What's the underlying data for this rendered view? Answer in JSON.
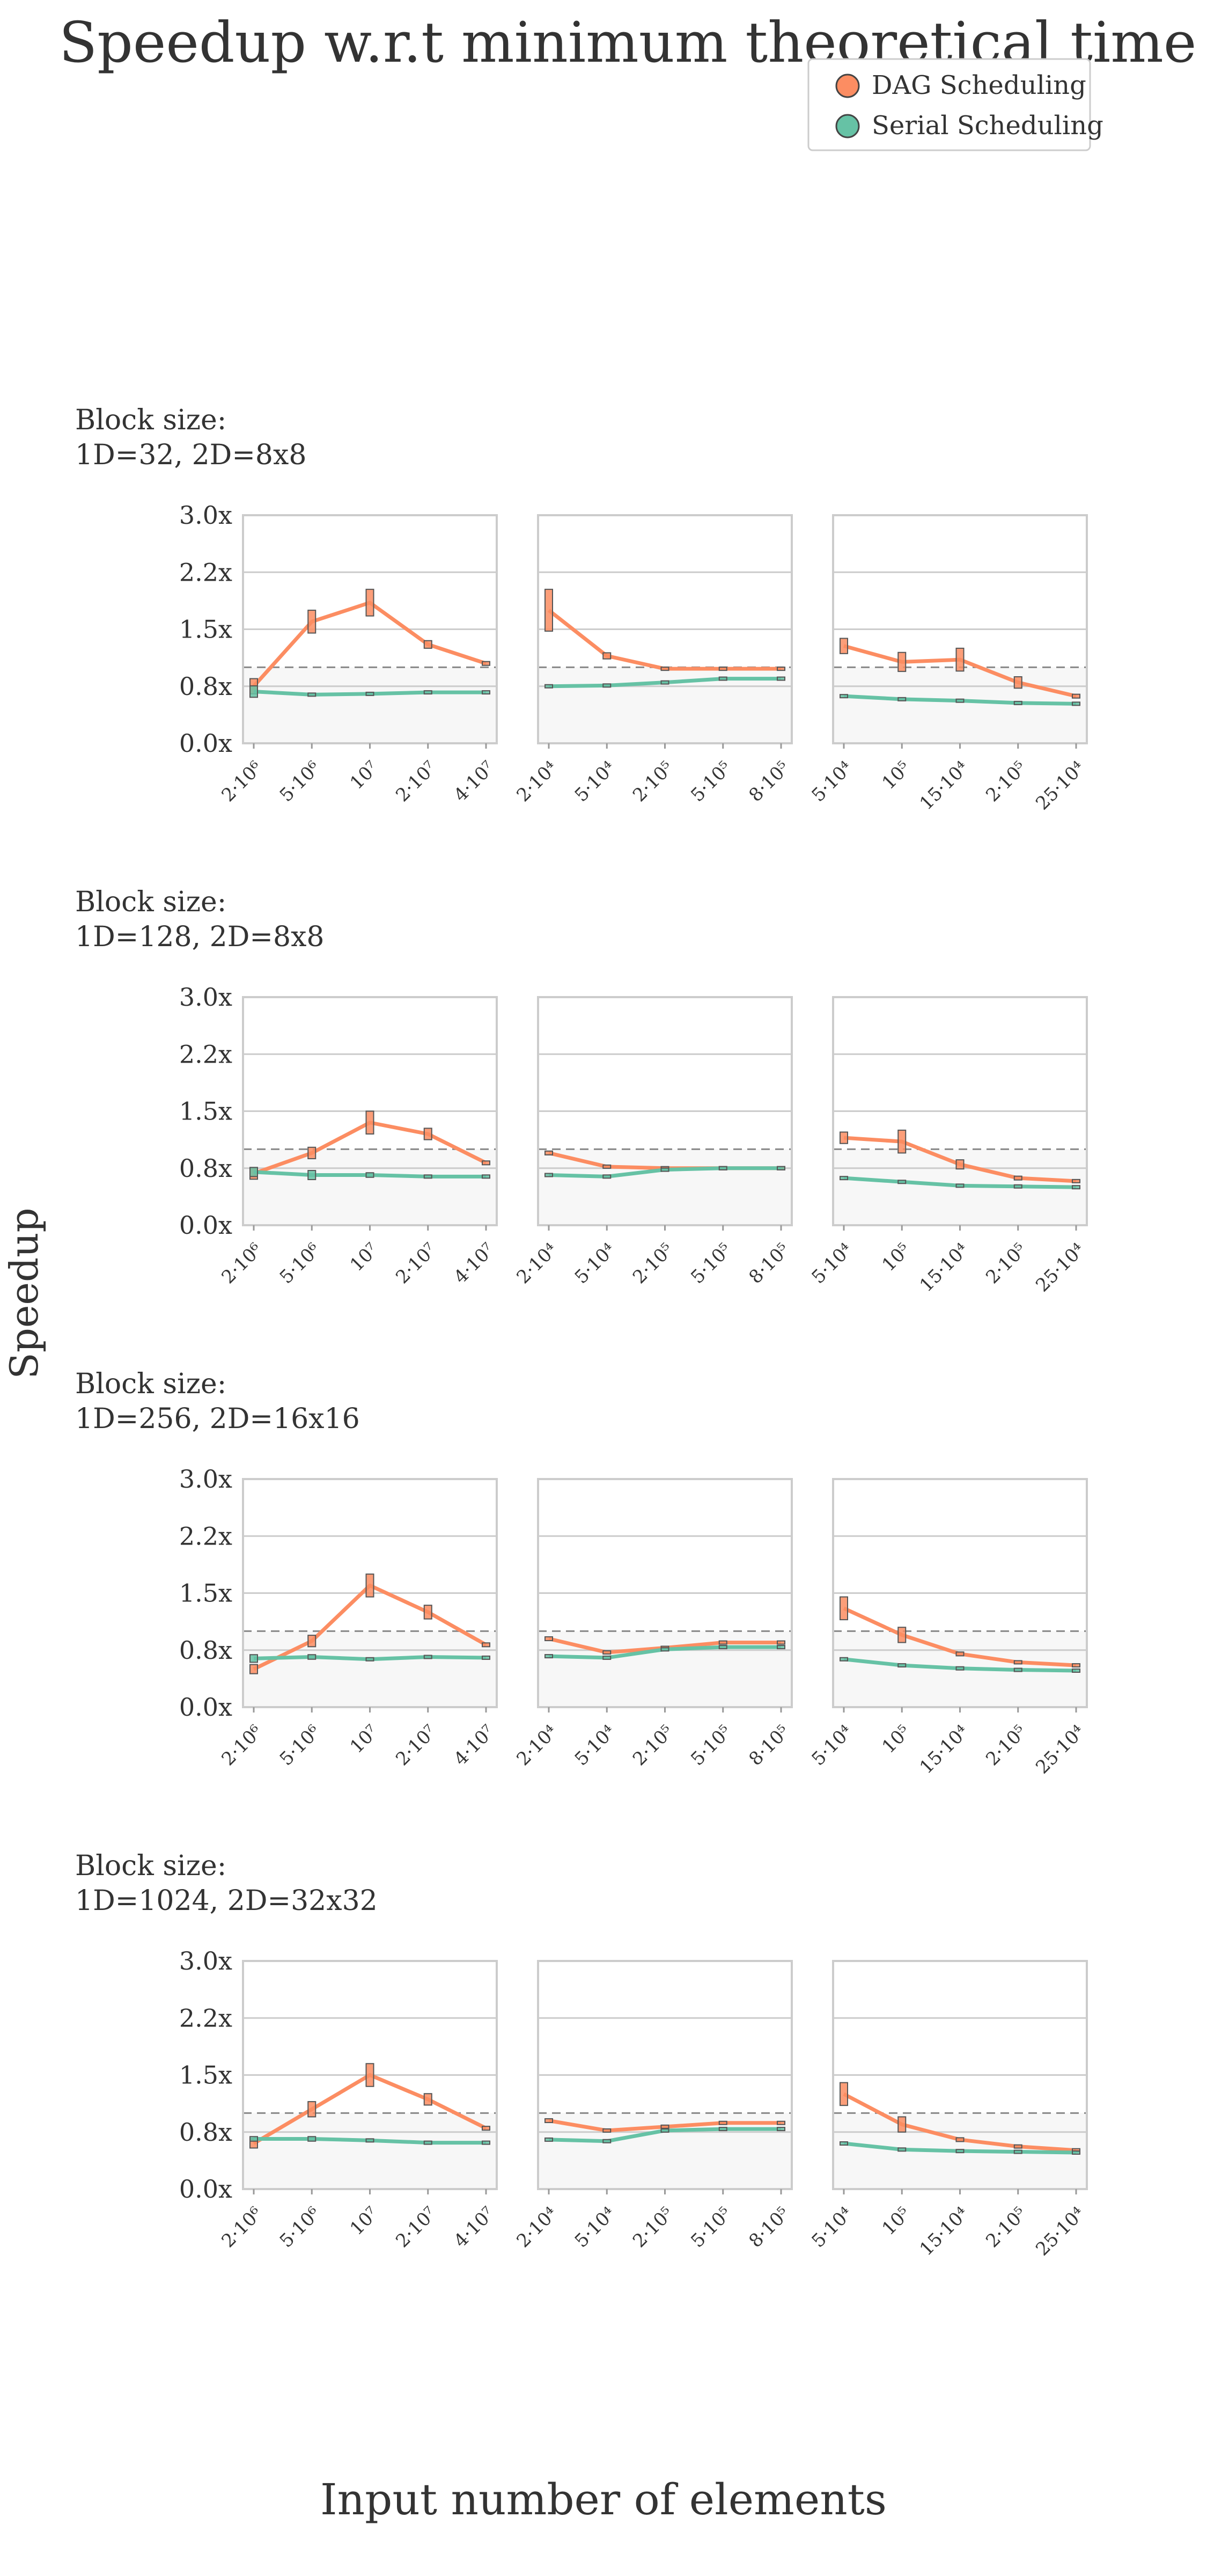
{
  "title": "Speedup w.r.t minimum theoretical time",
  "ylabel": "Speedup",
  "xlabel": "Input number of elements",
  "legend": {
    "position": "top-right",
    "items": [
      {
        "label": "DAG Scheduling",
        "color": "#fc8d62"
      },
      {
        "label": "Serial Scheduling",
        "color": "#66c2a5"
      }
    ]
  },
  "chart_data": {
    "type": "line",
    "ylim": [
      0,
      3
    ],
    "yticks": [
      "0.0x",
      "0.8x",
      "1.5x",
      "2.2x",
      "3.0x"
    ],
    "ytick_values": [
      0,
      0.75,
      1.5,
      2.25,
      3
    ],
    "reference_line": 1.0,
    "grid": true,
    "columns": [
      {
        "ticks": [
          "2·10⁶",
          "5·10⁶",
          "10⁷",
          "2·10⁷",
          "4·10⁷"
        ]
      },
      {
        "ticks": [
          "2·10⁴",
          "5·10⁴",
          "2·10⁵",
          "5·10⁵",
          "8·10⁵"
        ]
      },
      {
        "ticks": [
          "5·10⁴",
          "10⁵",
          "15·10⁴",
          "2·10⁵",
          "25·10⁴"
        ]
      }
    ],
    "rows": [
      {
        "label_line1": "Block size:",
        "label_line2": "1D=32, 2D=8x8",
        "panels": [
          {
            "series": [
              {
                "name": "DAG Scheduling",
                "values": [
                  0.75,
                  1.6,
                  1.85,
                  1.3,
                  1.05
                ],
                "spread": [
                  0.2,
                  0.3,
                  0.35,
                  0.1,
                  0.05
                ]
              },
              {
                "name": "Serial Scheduling",
                "values": [
                  0.68,
                  0.64,
                  0.65,
                  0.67,
                  0.67
                ],
                "spread": [
                  0.15,
                  0.02,
                  0.02,
                  0.02,
                  0.02
                ]
              }
            ]
          },
          {
            "series": [
              {
                "name": "DAG Scheduling",
                "values": [
                  1.75,
                  1.15,
                  0.98,
                  0.98,
                  0.98
                ],
                "spread": [
                  0.55,
                  0.08,
                  0.02,
                  0.02,
                  0.02
                ]
              },
              {
                "name": "Serial Scheduling",
                "values": [
                  0.75,
                  0.76,
                  0.8,
                  0.85,
                  0.85
                ],
                "spread": [
                  0.02,
                  0.02,
                  0.02,
                  0.02,
                  0.02
                ]
              }
            ]
          },
          {
            "series": [
              {
                "name": "DAG Scheduling",
                "values": [
                  1.28,
                  1.07,
                  1.1,
                  0.8,
                  0.62
                ],
                "spread": [
                  0.2,
                  0.25,
                  0.3,
                  0.15,
                  0.05
                ]
              },
              {
                "name": "Serial Scheduling",
                "values": [
                  0.62,
                  0.58,
                  0.56,
                  0.53,
                  0.52
                ],
                "spread": [
                  0.04,
                  0.02,
                  0.02,
                  0.02,
                  0.02
                ]
              }
            ]
          }
        ]
      },
      {
        "label_line1": "Block size:",
        "label_line2": "1D=128, 2D=8x8",
        "panels": [
          {
            "series": [
              {
                "name": "DAG Scheduling",
                "values": [
                  0.68,
                  0.95,
                  1.35,
                  1.2,
                  0.82
                ],
                "spread": [
                  0.15,
                  0.15,
                  0.3,
                  0.15,
                  0.05
                ]
              },
              {
                "name": "Serial Scheduling",
                "values": [
                  0.7,
                  0.66,
                  0.66,
                  0.64,
                  0.64
                ],
                "spread": [
                  0.12,
                  0.12,
                  0.06,
                  0.02,
                  0.02
                ]
              }
            ]
          },
          {
            "series": [
              {
                "name": "DAG Scheduling",
                "values": [
                  0.95,
                  0.77,
                  0.75,
                  0.75,
                  0.75
                ],
                "spread": [
                  0.05,
                  0.02,
                  0.02,
                  0.02,
                  0.02
                ]
              },
              {
                "name": "Serial Scheduling",
                "values": [
                  0.66,
                  0.64,
                  0.73,
                  0.75,
                  0.75
                ],
                "spread": [
                  0.02,
                  0.02,
                  0.02,
                  0.02,
                  0.02
                ]
              }
            ]
          },
          {
            "series": [
              {
                "name": "DAG Scheduling",
                "values": [
                  1.15,
                  1.1,
                  0.8,
                  0.62,
                  0.58
                ],
                "spread": [
                  0.15,
                  0.3,
                  0.12,
                  0.05,
                  0.02
                ]
              },
              {
                "name": "Serial Scheduling",
                "values": [
                  0.62,
                  0.57,
                  0.52,
                  0.51,
                  0.5
                ],
                "spread": [
                  0.02,
                  0.02,
                  0.02,
                  0.02,
                  0.02
                ]
              }
            ]
          }
        ]
      },
      {
        "label_line1": "Block size:",
        "label_line2": "1D=256, 2D=16x16",
        "panels": [
          {
            "series": [
              {
                "name": "DAG Scheduling",
                "values": [
                  0.5,
                  0.87,
                  1.6,
                  1.25,
                  0.82
                ],
                "spread": [
                  0.12,
                  0.15,
                  0.3,
                  0.18,
                  0.05
                ]
              },
              {
                "name": "Serial Scheduling",
                "values": [
                  0.64,
                  0.66,
                  0.63,
                  0.66,
                  0.65
                ],
                "spread": [
                  0.1,
                  0.06,
                  0.02,
                  0.02,
                  0.02
                ]
              }
            ]
          },
          {
            "series": [
              {
                "name": "DAG Scheduling",
                "values": [
                  0.9,
                  0.72,
                  0.78,
                  0.85,
                  0.85
                ],
                "spread": [
                  0.05,
                  0.02,
                  0.02,
                  0.02,
                  0.02
                ]
              },
              {
                "name": "Serial Scheduling",
                "values": [
                  0.67,
                  0.65,
                  0.76,
                  0.79,
                  0.79
                ],
                "spread": [
                  0.02,
                  0.02,
                  0.02,
                  0.02,
                  0.02
                ]
              }
            ]
          },
          {
            "series": [
              {
                "name": "DAG Scheduling",
                "values": [
                  1.3,
                  0.95,
                  0.7,
                  0.59,
                  0.55
                ],
                "spread": [
                  0.3,
                  0.2,
                  0.05,
                  0.02,
                  0.02
                ]
              },
              {
                "name": "Serial Scheduling",
                "values": [
                  0.63,
                  0.55,
                  0.51,
                  0.49,
                  0.48
                ],
                "spread": [
                  0.02,
                  0.02,
                  0.02,
                  0.02,
                  0.02
                ]
              }
            ]
          }
        ]
      },
      {
        "label_line1": "Block size:",
        "label_line2": "1D=1024, 2D=32x32",
        "panels": [
          {
            "series": [
              {
                "name": "DAG Scheduling",
                "values": [
                  0.6,
                  1.05,
                  1.5,
                  1.18,
                  0.8
                ],
                "spread": [
                  0.12,
                  0.2,
                  0.3,
                  0.15,
                  0.05
                ]
              },
              {
                "name": "Serial Scheduling",
                "values": [
                  0.66,
                  0.66,
                  0.64,
                  0.61,
                  0.61
                ],
                "spread": [
                  0.06,
                  0.06,
                  0.02,
                  0.02,
                  0.02
                ]
              }
            ]
          },
          {
            "series": [
              {
                "name": "DAG Scheduling",
                "values": [
                  0.9,
                  0.77,
                  0.82,
                  0.87,
                  0.87
                ],
                "spread": [
                  0.05,
                  0.02,
                  0.02,
                  0.02,
                  0.02
                ]
              },
              {
                "name": "Serial Scheduling",
                "values": [
                  0.65,
                  0.63,
                  0.77,
                  0.79,
                  0.79
                ],
                "spread": [
                  0.02,
                  0.02,
                  0.02,
                  0.02,
                  0.02
                ]
              }
            ]
          },
          {
            "series": [
              {
                "name": "DAG Scheduling",
                "values": [
                  1.25,
                  0.85,
                  0.65,
                  0.56,
                  0.51
                ],
                "spread": [
                  0.3,
                  0.2,
                  0.05,
                  0.02,
                  0.02
                ]
              },
              {
                "name": "Serial Scheduling",
                "values": [
                  0.6,
                  0.52,
                  0.5,
                  0.49,
                  0.48
                ],
                "spread": [
                  0.02,
                  0.02,
                  0.02,
                  0.02,
                  0.02
                ]
              }
            ]
          }
        ]
      }
    ]
  }
}
